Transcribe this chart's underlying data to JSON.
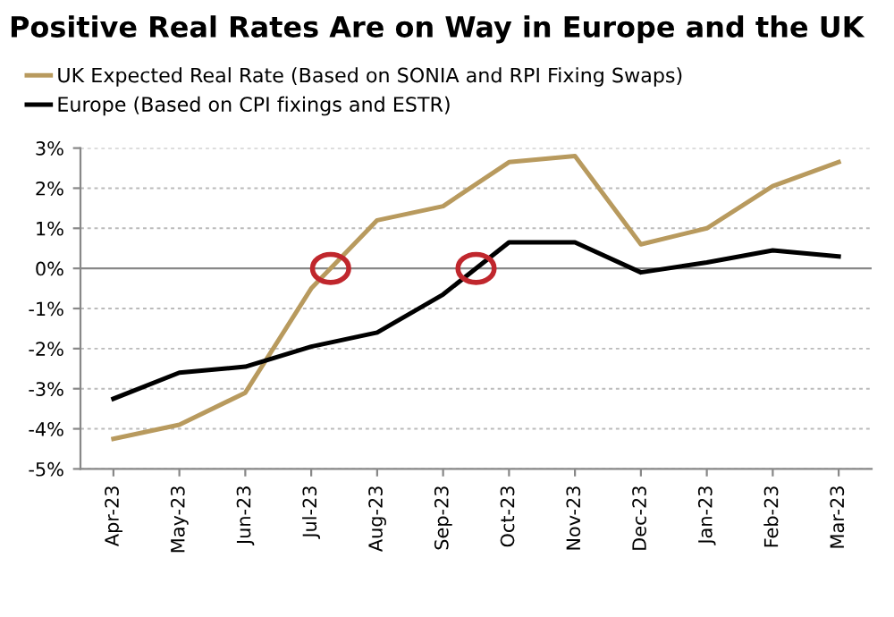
{
  "chart_data": {
    "type": "line",
    "title": "Positive Real Rates Are on Way in Europe and the UK",
    "categories": [
      "Apr-23",
      "May-23",
      "Jun-23",
      "Jul-23",
      "Aug-23",
      "Sep-23",
      "Oct-23",
      "Nov-23",
      "Dec-23",
      "Jan-23",
      "Feb-23",
      "Mar-23"
    ],
    "series": [
      {
        "name": "UK Expected Real Rate (Based on SONIA and RPI Fixing Swaps)",
        "color": "#b89a5e",
        "values": [
          -4.25,
          -3.9,
          -3.1,
          -0.5,
          1.2,
          1.55,
          2.65,
          2.8,
          0.6,
          1.0,
          2.05,
          2.65
        ]
      },
      {
        "name": "Europe (Based on CPI fixings and ESTR)",
        "color": "#000000",
        "values": [
          -3.25,
          -2.6,
          -2.45,
          -1.95,
          -1.6,
          -0.65,
          0.65,
          0.65,
          -0.1,
          0.15,
          0.45,
          0.3
        ]
      }
    ],
    "ylim": [
      -5,
      3
    ],
    "yticks": [
      {
        "value": -5,
        "label": "-5%"
      },
      {
        "value": -4,
        "label": "-4%"
      },
      {
        "value": -3,
        "label": "-3%"
      },
      {
        "value": -2,
        "label": "-2%"
      },
      {
        "value": -1,
        "label": "-1%"
      },
      {
        "value": 0,
        "label": "0%"
      },
      {
        "value": 1,
        "label": "1%"
      },
      {
        "value": 2,
        "label": "2%"
      },
      {
        "value": 3,
        "label": "3%"
      }
    ],
    "grid": "y",
    "legend": "top left",
    "marker": "none",
    "line_style": "solid"
  }
}
